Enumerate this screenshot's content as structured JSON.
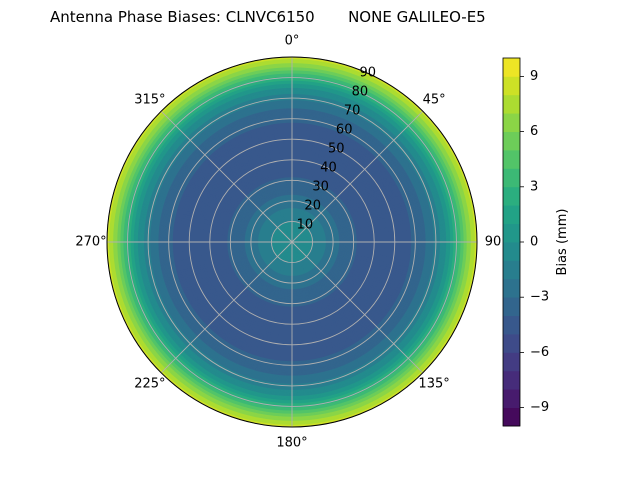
{
  "chart_data": {
    "type": "heatmap",
    "projection": "polar",
    "title": "Antenna Phase Biases: CLNVC6150       NONE GALILEO-E5",
    "theta_direction": "clockwise",
    "theta_zero": "top",
    "theta_ticks": [
      0,
      45,
      90,
      135,
      180,
      225,
      270,
      315
    ],
    "theta_tick_labels": [
      "0°",
      "45°",
      "90",
      "135°",
      "180°",
      "225°",
      "270°",
      "315°"
    ],
    "r_ticks": [
      10,
      20,
      30,
      40,
      50,
      60,
      70,
      80,
      90
    ],
    "r_tick_labels": [
      "10",
      "20",
      "30",
      "40",
      "50",
      "60",
      "70",
      "80",
      "90"
    ],
    "r_range": [
      0,
      90
    ],
    "r_label_angle": 22.5,
    "grid": true,
    "zenith_profile": {
      "zenith_angle": [
        0,
        5,
        10,
        15,
        20,
        25,
        30,
        35,
        40,
        45,
        50,
        55,
        60,
        65,
        70,
        75,
        80,
        85,
        90
      ],
      "bias_mm": [
        0.0,
        -0.5,
        -1.0,
        -1.8,
        -2.6,
        -3.3,
        -3.9,
        -4.3,
        -4.6,
        -4.7,
        -4.6,
        -4.3,
        -3.8,
        -3.0,
        -1.8,
        0.0,
        2.8,
        6.0,
        8.5
      ]
    },
    "colorbar": {
      "label": "Bias (mm)",
      "range": [
        -10,
        10
      ],
      "levels": 20,
      "ticks": [
        -9,
        -6,
        -3,
        0,
        3,
        6,
        9
      ],
      "tick_labels": [
        "−9",
        "−6",
        "−3",
        "0",
        "3",
        "6",
        "9"
      ],
      "colormap": "viridis"
    }
  }
}
